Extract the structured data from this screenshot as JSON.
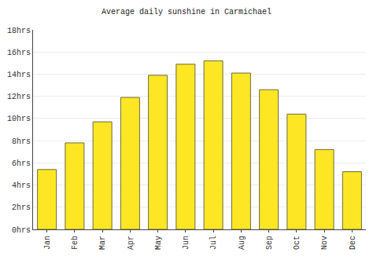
{
  "chart_data": {
    "type": "bar",
    "title": "Average daily sunshine in Carmichael",
    "categories": [
      "Jan",
      "Feb",
      "Mar",
      "Apr",
      "May",
      "Jun",
      "Jul",
      "Aug",
      "Sep",
      "Oct",
      "Nov",
      "Dec"
    ],
    "values": [
      5.4,
      7.8,
      9.7,
      11.9,
      13.9,
      14.9,
      15.2,
      14.1,
      12.6,
      10.4,
      7.2,
      5.2
    ],
    "color": "#fde725",
    "ylim": [
      0,
      18
    ],
    "yticks": [
      {
        "value": 0,
        "label": "0hrs"
      },
      {
        "value": 2,
        "label": "2hrs"
      },
      {
        "value": 4,
        "label": "4hrs"
      },
      {
        "value": 6,
        "label": "6hrs"
      },
      {
        "value": 8,
        "label": "8hrs"
      },
      {
        "value": 10,
        "label": "10hrs"
      },
      {
        "value": 12,
        "label": "12hrs"
      },
      {
        "value": 14,
        "label": "14hrs"
      },
      {
        "value": 16,
        "label": "16hrs"
      },
      {
        "value": 18,
        "label": "18hrs"
      }
    ],
    "grid": true
  }
}
